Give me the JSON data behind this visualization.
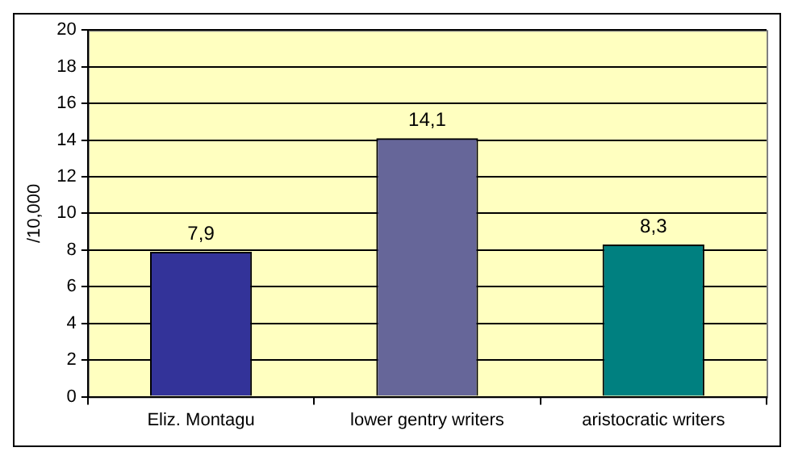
{
  "chart_data": {
    "type": "bar",
    "ylabel": "/10,000",
    "categories": [
      "Eliz. Montagu",
      "lower gentry writers",
      "aristocratic writers"
    ],
    "values": [
      7.9,
      14.1,
      8.3
    ],
    "colors": [
      "#333399",
      "#666699",
      "#008080"
    ],
    "value_labels": [
      "7,9",
      "14,1",
      "8,3"
    ],
    "ylim": [
      0,
      20
    ],
    "yticks": [
      0,
      2,
      4,
      6,
      8,
      10,
      12,
      14,
      16,
      18,
      20
    ],
    "grid": "y",
    "legend": false
  }
}
